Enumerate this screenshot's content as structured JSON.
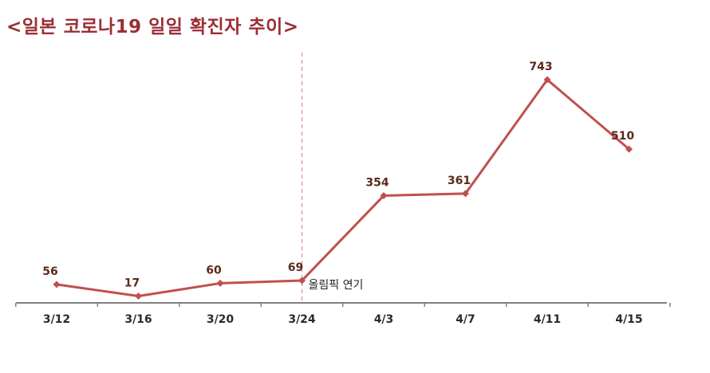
{
  "title": "<일본 코로나19 일일 확진자 추이>",
  "colors": {
    "title": "#9b2f35",
    "line": "#c0504d",
    "marker": "#c0504d",
    "event_line": "#e3a09e",
    "axis": "#808080",
    "data_label": "#5a2a1c"
  },
  "chart_data": {
    "type": "line",
    "title": "<일본 코로나19 일일 확진자 추이>",
    "xlabel": "",
    "ylabel": "",
    "categories": [
      "3/12",
      "3/16",
      "3/20",
      "3/24",
      "4/3",
      "4/7",
      "4/11",
      "4/15"
    ],
    "series": [
      {
        "values": [
          56,
          17,
          60,
          69,
          354,
          361,
          743,
          510
        ]
      }
    ],
    "ylim": [
      0,
      800
    ],
    "grid": false,
    "legend": "none",
    "annotations": [
      {
        "category": "3/24",
        "text": "올림픽 연기",
        "style": "dashed vertical line"
      }
    ]
  }
}
